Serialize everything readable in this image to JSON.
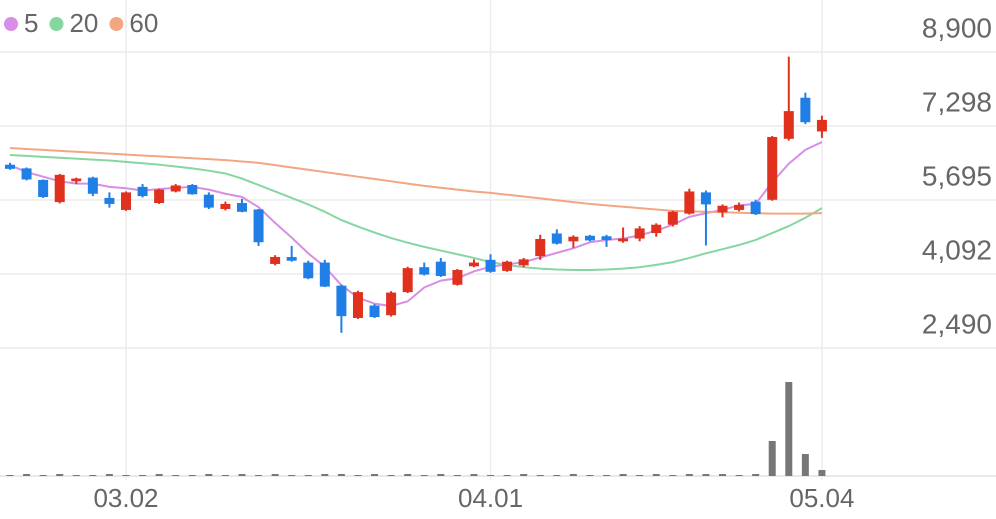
{
  "chart_data": {
    "type": "candlestick",
    "categories": [
      null,
      null,
      null,
      null,
      null,
      null,
      null,
      "03.02",
      null,
      null,
      null,
      null,
      null,
      null,
      null,
      null,
      null,
      null,
      null,
      null,
      null,
      null,
      null,
      null,
      null,
      null,
      null,
      null,
      null,
      "04.01",
      null,
      null,
      null,
      null,
      null,
      null,
      null,
      null,
      null,
      null,
      null,
      null,
      null,
      null,
      null,
      null,
      null,
      null,
      null,
      "05.04"
    ],
    "open": [
      6460,
      6380,
      6130,
      5650,
      6100,
      6180,
      5740,
      5480,
      5980,
      5630,
      5880,
      6020,
      5810,
      5500,
      5630,
      5490,
      4310,
      4460,
      4340,
      4340,
      3840,
      3140,
      3410,
      3200,
      3700,
      4240,
      4360,
      3860,
      4260,
      4400,
      4160,
      4280,
      4480,
      4970,
      4800,
      4920,
      4910,
      4800,
      4860,
      4980,
      5160,
      5400,
      5860,
      5430,
      5480,
      5660,
      5700,
      7020,
      7910,
      7180
    ],
    "high": [
      6500,
      6400,
      6140,
      6260,
      6180,
      6200,
      5860,
      5880,
      6040,
      5940,
      6040,
      6040,
      5860,
      5660,
      5720,
      5500,
      4500,
      4700,
      4380,
      4400,
      3860,
      3730,
      3440,
      3720,
      4250,
      4340,
      4440,
      4200,
      4410,
      4520,
      4380,
      4440,
      4940,
      5060,
      4930,
      4940,
      4940,
      5100,
      5130,
      5190,
      5460,
      5940,
      5900,
      5600,
      5640,
      5700,
      7080,
      8800,
      8020,
      7520
    ],
    "low": [
      6350,
      6120,
      5740,
      5620,
      6040,
      5780,
      5530,
      5460,
      5750,
      5610,
      5860,
      5810,
      5500,
      5470,
      5430,
      4700,
      4280,
      4360,
      3980,
      3810,
      2820,
      3120,
      3140,
      3170,
      3680,
      4060,
      4030,
      3840,
      4240,
      4120,
      4140,
      4240,
      4400,
      4730,
      4660,
      4800,
      4680,
      4770,
      4800,
      4900,
      5120,
      5380,
      4710,
      5320,
      5450,
      5370,
      5680,
      6980,
      7340,
      7040
    ],
    "close": [
      6370,
      6140,
      5760,
      6240,
      6160,
      5830,
      5610,
      5860,
      5780,
      5920,
      6010,
      5820,
      5530,
      5610,
      5440,
      4780,
      4460,
      4380,
      4000,
      3820,
      3180,
      3700,
      3160,
      3690,
      4220,
      4080,
      4050,
      4180,
      4340,
      4140,
      4360,
      4410,
      4850,
      4750,
      4900,
      4820,
      4830,
      4860,
      5080,
      5160,
      5440,
      5880,
      5600,
      5570,
      5590,
      5390,
      7060,
      7620,
      7380,
      7430
    ],
    "up_color": "#e0301e",
    "down_color": "#1f7fe6",
    "ma": [
      {
        "name": "5",
        "color": "#d88ee6",
        "values": [
          6450,
          6300,
          6200,
          6100,
          6050,
          6050,
          5980,
          5950,
          5900,
          5930,
          5960,
          5980,
          5920,
          5830,
          5760,
          5540,
          5200,
          4880,
          4540,
          4250,
          3850,
          3580,
          3450,
          3400,
          3500,
          3800,
          3950,
          4000,
          4150,
          4250,
          4300,
          4350,
          4450,
          4550,
          4650,
          4780,
          4830,
          4860,
          4930,
          5030,
          5160,
          5330,
          5410,
          5480,
          5580,
          5610,
          6080,
          6480,
          6780,
          6950
        ]
      },
      {
        "name": "20",
        "color": "#86d6a0",
        "values": [
          6670,
          6650,
          6630,
          6610,
          6590,
          6570,
          6550,
          6520,
          6490,
          6460,
          6420,
          6380,
          6330,
          6270,
          6160,
          6020,
          5880,
          5740,
          5600,
          5440,
          5260,
          5120,
          4990,
          4870,
          4770,
          4680,
          4600,
          4520,
          4440,
          4350,
          4290,
          4240,
          4210,
          4190,
          4180,
          4180,
          4190,
          4210,
          4240,
          4290,
          4350,
          4440,
          4540,
          4630,
          4720,
          4830,
          4980,
          5130,
          5310,
          5520
        ]
      },
      {
        "name": "60",
        "color": "#f2a682",
        "values": [
          6820,
          6800,
          6780,
          6760,
          6740,
          6720,
          6700,
          6680,
          6660,
          6640,
          6620,
          6600,
          6580,
          6560,
          6530,
          6500,
          6450,
          6400,
          6350,
          6300,
          6250,
          6200,
          6150,
          6100,
          6050,
          6000,
          5960,
          5920,
          5880,
          5850,
          5810,
          5770,
          5730,
          5690,
          5650,
          5610,
          5580,
          5550,
          5520,
          5490,
          5460,
          5450,
          5440,
          5430,
          5420,
          5410,
          5400,
          5400,
          5400,
          5410
        ]
      }
    ],
    "ylim": [
      2230,
      9810
    ],
    "yticks": [
      {
        "value": 8900,
        "label": "8,900"
      },
      {
        "value": 7298,
        "label": "7,298"
      },
      {
        "value": 5695,
        "label": "5,695"
      },
      {
        "value": 4092,
        "label": "4,092"
      },
      {
        "value": 2490,
        "label": "2,490"
      }
    ],
    "volume": [
      1,
      2,
      1,
      2,
      1,
      1,
      2,
      1,
      1,
      2,
      1,
      1,
      2,
      1,
      2,
      1,
      2,
      1,
      1,
      2,
      2,
      1,
      2,
      1,
      2,
      1,
      2,
      1,
      2,
      1,
      1,
      2,
      1,
      1,
      2,
      1,
      1,
      2,
      1,
      2,
      1,
      2,
      2,
      2,
      1,
      2,
      35,
      94,
      22,
      6
    ],
    "volume_color": "#777777",
    "vlim": [
      0,
      110
    ],
    "grid": true
  }
}
